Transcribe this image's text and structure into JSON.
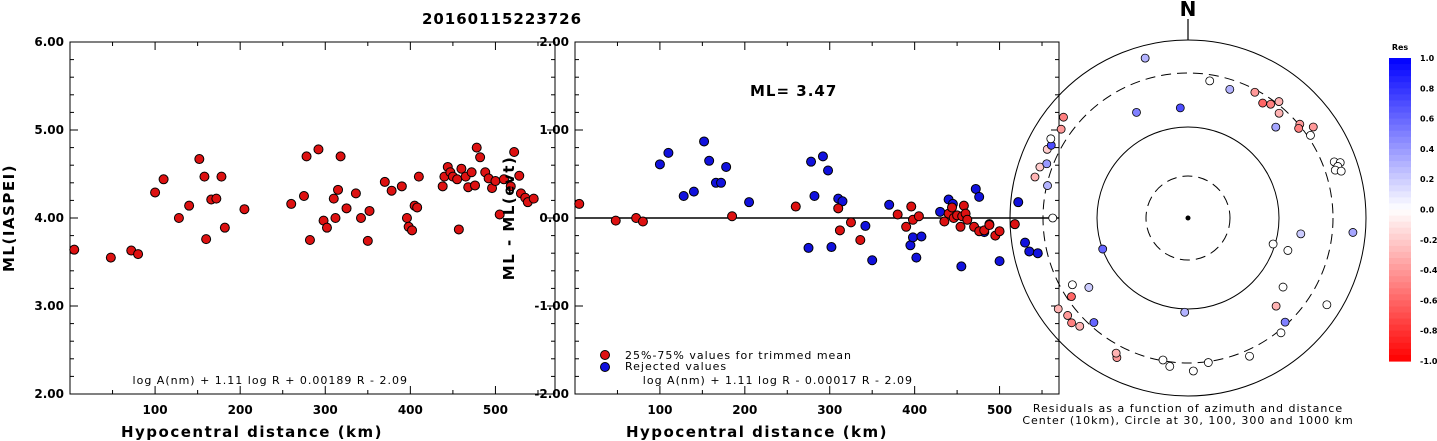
{
  "title": "20160115223726",
  "colors": {
    "accepted": "#dd1111",
    "rejected": "#1111dd",
    "axis": "#000000"
  },
  "chart_data": [
    {
      "type": "scatter",
      "name": "left",
      "xlabel": "Hypocentral distance (km)",
      "ylabel": "ML(IASPEI)",
      "xlim": [
        0,
        570
      ],
      "ylim": [
        2.0,
        6.0
      ],
      "xticks": [
        "100",
        "200",
        "300",
        "400",
        "500"
      ],
      "yticks": [
        "2.00",
        "3.00",
        "4.00",
        "5.00",
        "6.00"
      ],
      "formula": "log A(nm) + 1.11 log R + 0.00189 R - 2.09",
      "points": [
        [
          5,
          3.64
        ],
        [
          48,
          3.55
        ],
        [
          72,
          3.63
        ],
        [
          80,
          3.59
        ],
        [
          100,
          4.29
        ],
        [
          110,
          4.44
        ],
        [
          128,
          4.0
        ],
        [
          140,
          4.14
        ],
        [
          152,
          4.67
        ],
        [
          160,
          3.76
        ],
        [
          158,
          4.47
        ],
        [
          166,
          4.21
        ],
        [
          172,
          4.22
        ],
        [
          178,
          4.47
        ],
        [
          182,
          3.89
        ],
        [
          205,
          4.1
        ],
        [
          260,
          4.16
        ],
        [
          275,
          4.25
        ],
        [
          282,
          3.75
        ],
        [
          278,
          4.7
        ],
        [
          292,
          4.78
        ],
        [
          298,
          3.97
        ],
        [
          302,
          3.89
        ],
        [
          310,
          4.22
        ],
        [
          312,
          4.0
        ],
        [
          315,
          4.32
        ],
        [
          318,
          4.7
        ],
        [
          325,
          4.11
        ],
        [
          336,
          4.28
        ],
        [
          342,
          4.0
        ],
        [
          350,
          3.74
        ],
        [
          352,
          4.08
        ],
        [
          370,
          4.41
        ],
        [
          378,
          4.31
        ],
        [
          390,
          4.36
        ],
        [
          396,
          4.0
        ],
        [
          398,
          3.9
        ],
        [
          402,
          3.86
        ],
        [
          405,
          4.14
        ],
        [
          408,
          4.12
        ],
        [
          410,
          4.47
        ],
        [
          438,
          4.36
        ],
        [
          440,
          4.47
        ],
        [
          444,
          4.58
        ],
        [
          447,
          4.52
        ],
        [
          450,
          4.47
        ],
        [
          455,
          4.44
        ],
        [
          457,
          3.87
        ],
        [
          460,
          4.56
        ],
        [
          465,
          4.47
        ],
        [
          468,
          4.35
        ],
        [
          472,
          4.52
        ],
        [
          476,
          4.37
        ],
        [
          478,
          4.8
        ],
        [
          482,
          4.69
        ],
        [
          488,
          4.52
        ],
        [
          492,
          4.45
        ],
        [
          496,
          4.34
        ],
        [
          500,
          4.42
        ],
        [
          505,
          4.04
        ],
        [
          510,
          4.44
        ],
        [
          518,
          4.36
        ],
        [
          522,
          4.75
        ],
        [
          528,
          4.48
        ],
        [
          530,
          4.28
        ],
        [
          535,
          4.23
        ],
        [
          538,
          4.18
        ],
        [
          545,
          4.22
        ]
      ]
    },
    {
      "type": "scatter",
      "name": "middle",
      "xlabel": "Hypocentral distance (km)",
      "ylabel": "ML - ML(evt)",
      "xlim": [
        0,
        570
      ],
      "ylim": [
        -2.0,
        2.0
      ],
      "xticks": [
        "100",
        "200",
        "300",
        "400",
        "500"
      ],
      "yticks": [
        "-2.00",
        "-1.00",
        "0.00",
        "1.00",
        "2.00"
      ],
      "ml_label": "ML= 3.47",
      "legend": [
        "25%-75% values for trimmed mean",
        "Rejected values"
      ],
      "formula": "log A(nm) + 1.11 log R - 0.00017 R - 2.09",
      "accepted": [
        [
          5,
          0.16
        ],
        [
          48,
          -0.03
        ],
        [
          72,
          0.0
        ],
        [
          80,
          -0.04
        ],
        [
          185,
          0.02
        ],
        [
          260,
          0.13
        ],
        [
          310,
          0.11
        ],
        [
          312,
          -0.14
        ],
        [
          325,
          -0.05
        ],
        [
          336,
          -0.25
        ],
        [
          380,
          0.04
        ],
        [
          390,
          -0.1
        ],
        [
          396,
          0.13
        ],
        [
          398,
          -0.02
        ],
        [
          405,
          0.02
        ],
        [
          435,
          -0.04
        ],
        [
          440,
          0.05
        ],
        [
          444,
          0.12
        ],
        [
          446,
          0.0
        ],
        [
          450,
          0.03
        ],
        [
          454,
          -0.1
        ],
        [
          456,
          0.02
        ],
        [
          458,
          0.14
        ],
        [
          460,
          0.05
        ],
        [
          462,
          -0.02
        ],
        [
          470,
          -0.1
        ],
        [
          476,
          -0.15
        ],
        [
          482,
          -0.14
        ],
        [
          488,
          -0.08
        ],
        [
          495,
          -0.2
        ],
        [
          500,
          -0.15
        ],
        [
          518,
          -0.07
        ]
      ],
      "rejected": [
        [
          100,
          0.61
        ],
        [
          110,
          0.74
        ],
        [
          128,
          0.25
        ],
        [
          140,
          0.3
        ],
        [
          152,
          0.87
        ],
        [
          158,
          0.65
        ],
        [
          166,
          0.4
        ],
        [
          172,
          0.4
        ],
        [
          178,
          0.58
        ],
        [
          205,
          0.18
        ],
        [
          275,
          -0.34
        ],
        [
          278,
          0.64
        ],
        [
          282,
          0.25
        ],
        [
          292,
          0.7
        ],
        [
          298,
          0.54
        ],
        [
          302,
          -0.33
        ],
        [
          310,
          0.22
        ],
        [
          315,
          0.19
        ],
        [
          342,
          -0.09
        ],
        [
          350,
          -0.48
        ],
        [
          370,
          0.15
        ],
        [
          395,
          -0.31
        ],
        [
          398,
          -0.22
        ],
        [
          402,
          -0.45
        ],
        [
          408,
          -0.21
        ],
        [
          430,
          0.07
        ],
        [
          440,
          0.21
        ],
        [
          445,
          0.16
        ],
        [
          455,
          -0.55
        ],
        [
          472,
          0.33
        ],
        [
          476,
          0.24
        ],
        [
          482,
          -0.16
        ],
        [
          488,
          -0.07
        ],
        [
          500,
          -0.49
        ],
        [
          522,
          0.18
        ],
        [
          530,
          -0.28
        ],
        [
          535,
          -0.38
        ],
        [
          545,
          -0.4
        ]
      ]
    },
    {
      "type": "polar",
      "name": "right",
      "north_label": "N",
      "caption": [
        "Residuals as a function of azimuth and distance",
        "Center (10km), Circle at 30, 100, 300 and 1000 km"
      ],
      "colorbar_title": "Res",
      "colorbar_ticks": [
        "1.0",
        "0.8",
        "0.6",
        "0.4",
        "0.2",
        "0.0",
        "-0.2",
        "-0.4",
        "-0.6",
        "-0.8",
        "-1.0"
      ],
      "points": [
        [
          9,
          0.78,
          0.0
        ],
        [
          18,
          0.76,
          0.3
        ],
        [
          28,
          0.8,
          -0.4
        ],
        [
          33,
          0.77,
          -0.6
        ],
        [
          36,
          0.79,
          -0.5
        ],
        [
          38,
          0.83,
          -0.3
        ],
        [
          41,
          0.78,
          -0.3
        ],
        [
          44,
          0.71,
          0.35
        ],
        [
          50,
          0.82,
          -0.4
        ],
        [
          51,
          0.8,
          -0.5
        ],
        [
          54,
          0.87,
          -0.4
        ],
        [
          56,
          0.83,
          0.0
        ],
        [
          69,
          0.88,
          0.0
        ],
        [
          70,
          0.91,
          0.0
        ],
        [
          71,
          0.89,
          0.0
        ],
        [
          72,
          0.87,
          0.0
        ],
        [
          73,
          0.9,
          0.0
        ],
        [
          95,
          0.93,
          0.35
        ],
        [
          98,
          0.64,
          0.2
        ],
        [
          107,
          0.5,
          0.0
        ],
        [
          108,
          0.59,
          0.0
        ],
        [
          122,
          0.92,
          0.0
        ],
        [
          126,
          0.66,
          0.0
        ],
        [
          135,
          0.7,
          -0.3
        ],
        [
          137,
          0.8,
          0.5
        ],
        [
          141,
          0.83,
          0.0
        ],
        [
          156,
          0.85,
          0.0
        ],
        [
          172,
          0.82,
          0.0
        ],
        [
          178,
          0.86,
          0.0
        ],
        [
          182,
          0.53,
          0.3
        ],
        [
          187,
          0.84,
          0.0
        ],
        [
          190,
          0.81,
          0.0
        ],
        [
          207,
          0.88,
          -0.4
        ],
        [
          208,
          0.86,
          -0.3
        ],
        [
          222,
          0.79,
          0.6
        ],
        [
          235,
          0.68,
          0.2
        ],
        [
          225,
          0.86,
          -0.3
        ],
        [
          228,
          0.88,
          -0.5
        ],
        [
          231,
          0.87,
          -0.4
        ],
        [
          235,
          0.89,
          -0.3
        ],
        [
          236,
          0.79,
          -0.6
        ],
        [
          240,
          0.75,
          0.0
        ],
        [
          250,
          0.51,
          0.6
        ],
        [
          270,
          0.76,
          0.0
        ],
        [
          283,
          0.81,
          0.3
        ],
        [
          285,
          0.89,
          -0.3
        ],
        [
          289,
          0.88,
          -0.2
        ],
        [
          291,
          0.85,
          0.4
        ],
        [
          296,
          0.88,
          -0.2
        ],
        [
          298,
          0.87,
          0.7
        ],
        [
          300,
          0.89,
          0.0
        ],
        [
          305,
          0.87,
          -0.4
        ],
        [
          309,
          0.9,
          -0.5
        ],
        [
          334,
          0.66,
          0.5
        ],
        [
          345,
          0.93,
          0.3
        ],
        [
          356,
          0.62,
          0.7
        ]
      ]
    }
  ]
}
